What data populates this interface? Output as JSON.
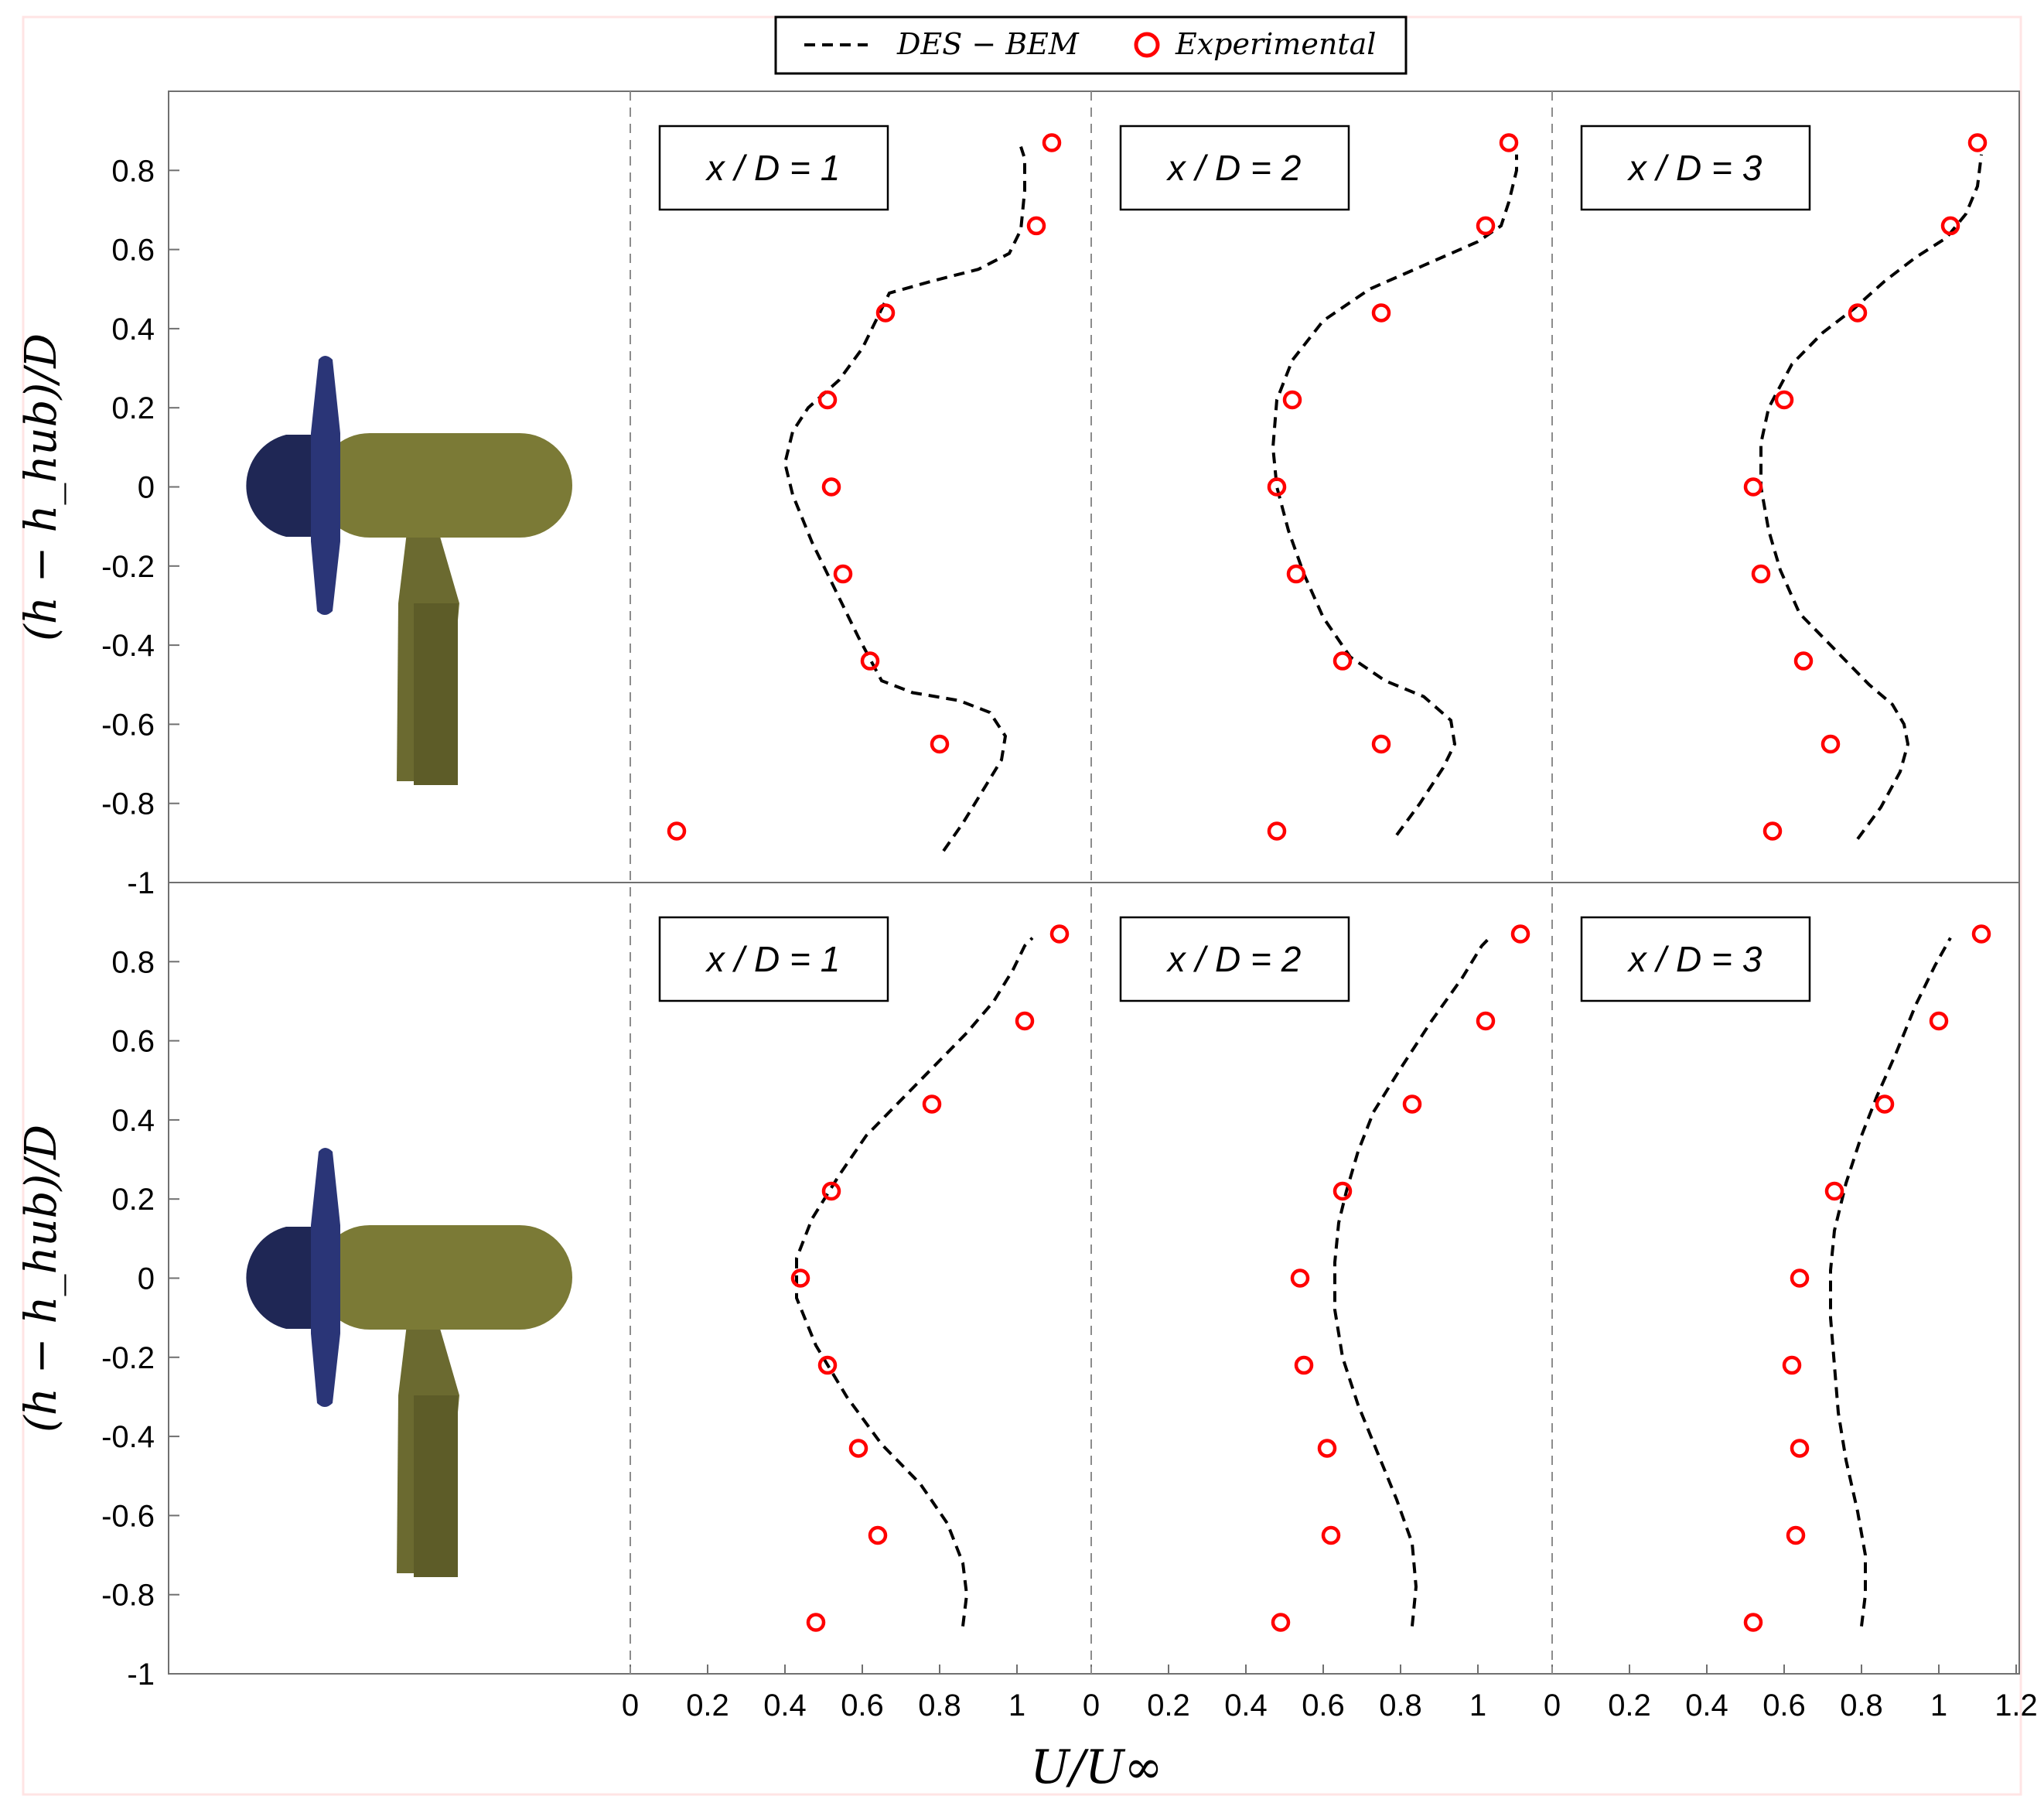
{
  "legend": {
    "placement": "top-center",
    "entries": [
      {
        "label": "DES − BEM",
        "style": "dashed-line",
        "color": "#000000"
      },
      {
        "label": "Experimental",
        "style": "open-circle",
        "color": "#ff0000"
      }
    ]
  },
  "axes": {
    "ylabel": "(h − h_hub)/D",
    "xlabel": "U/U∞",
    "yticks": [
      "0.8",
      "0.6",
      "0.4",
      "0.2",
      "0",
      "-0.2",
      "-0.4",
      "-0.6",
      "-0.8",
      "-1"
    ],
    "xticks": [
      "0",
      "0.2",
      "0.4",
      "0.6",
      "0.8",
      "1"
    ],
    "xticks_last": [
      "0",
      "0.2",
      "0.4",
      "0.6",
      "0.8",
      "1",
      "1.2"
    ]
  },
  "colors": {
    "model": "#000000",
    "experiment": "#ff0000",
    "nacelle_front": "#1f2755",
    "nacelle_body": "#6b6a30",
    "tower": "#5a5a26"
  },
  "illustration_icon": "tidal-turbine-icon",
  "chart_data": [
    {
      "type": "line",
      "row": 0,
      "col": 0,
      "title": "x / D = 1",
      "xlim": [
        0,
        1.2
      ],
      "ylim": [
        -1,
        1
      ],
      "series": [
        {
          "name": "DES − BEM",
          "style": "dashed",
          "points": [
            [
              0.81,
              -0.92
            ],
            [
              0.86,
              -0.85
            ],
            [
              0.91,
              -0.77
            ],
            [
              0.96,
              -0.69
            ],
            [
              0.97,
              -0.63
            ],
            [
              0.93,
              -0.57
            ],
            [
              0.85,
              -0.54
            ],
            [
              0.73,
              -0.52
            ],
            [
              0.65,
              -0.49
            ],
            [
              0.59,
              -0.38
            ],
            [
              0.53,
              -0.26
            ],
            [
              0.47,
              -0.14
            ],
            [
              0.42,
              -0.02
            ],
            [
              0.4,
              0.06
            ],
            [
              0.42,
              0.14
            ],
            [
              0.46,
              0.2
            ],
            [
              0.54,
              0.27
            ],
            [
              0.6,
              0.35
            ],
            [
              0.64,
              0.43
            ],
            [
              0.67,
              0.49
            ],
            [
              0.78,
              0.52
            ],
            [
              0.9,
              0.55
            ],
            [
              0.98,
              0.59
            ],
            [
              1.01,
              0.65
            ],
            [
              1.02,
              0.75
            ],
            [
              1.02,
              0.83
            ],
            [
              1.01,
              0.86
            ]
          ]
        },
        {
          "name": "Experimental",
          "style": "markers",
          "points": [
            [
              1.09,
              0.87
            ],
            [
              1.05,
              0.66
            ],
            [
              0.66,
              0.44
            ],
            [
              0.51,
              0.22
            ],
            [
              0.52,
              0.0
            ],
            [
              0.55,
              -0.22
            ],
            [
              0.62,
              -0.44
            ],
            [
              0.8,
              -0.65
            ],
            [
              0.12,
              -0.87
            ]
          ]
        }
      ]
    },
    {
      "type": "line",
      "row": 0,
      "col": 1,
      "title": "x / D = 2",
      "xlim": [
        0,
        1.2
      ],
      "ylim": [
        -1,
        1
      ],
      "series": [
        {
          "name": "DES − BEM",
          "style": "dashed",
          "points": [
            [
              0.79,
              -0.88
            ],
            [
              0.85,
              -0.8
            ],
            [
              0.91,
              -0.71
            ],
            [
              0.94,
              -0.65
            ],
            [
              0.93,
              -0.59
            ],
            [
              0.86,
              -0.53
            ],
            [
              0.76,
              -0.49
            ],
            [
              0.67,
              -0.43
            ],
            [
              0.6,
              -0.33
            ],
            [
              0.55,
              -0.22
            ],
            [
              0.51,
              -0.11
            ],
            [
              0.48,
              0.0
            ],
            [
              0.47,
              0.1
            ],
            [
              0.48,
              0.22
            ],
            [
              0.52,
              0.32
            ],
            [
              0.6,
              0.42
            ],
            [
              0.72,
              0.5
            ],
            [
              0.86,
              0.56
            ],
            [
              1.0,
              0.62
            ],
            [
              1.06,
              0.66
            ],
            [
              1.08,
              0.72
            ],
            [
              1.1,
              0.8
            ],
            [
              1.1,
              0.84
            ]
          ]
        },
        {
          "name": "Experimental",
          "style": "markers",
          "points": [
            [
              1.08,
              0.87
            ],
            [
              1.02,
              0.66
            ],
            [
              0.75,
              0.44
            ],
            [
              0.52,
              0.22
            ],
            [
              0.48,
              0.0
            ],
            [
              0.53,
              -0.22
            ],
            [
              0.65,
              -0.44
            ],
            [
              0.75,
              -0.65
            ],
            [
              0.48,
              -0.87
            ]
          ]
        }
      ]
    },
    {
      "type": "line",
      "row": 0,
      "col": 2,
      "title": "x / D = 3",
      "xlim": [
        0,
        1.2
      ],
      "ylim": [
        -1,
        1
      ],
      "series": [
        {
          "name": "DES − BEM",
          "style": "dashed",
          "points": [
            [
              0.79,
              -0.89
            ],
            [
              0.85,
              -0.81
            ],
            [
              0.9,
              -0.72
            ],
            [
              0.92,
              -0.65
            ],
            [
              0.91,
              -0.6
            ],
            [
              0.88,
              -0.55
            ],
            [
              0.82,
              -0.5
            ],
            [
              0.73,
              -0.41
            ],
            [
              0.64,
              -0.32
            ],
            [
              0.59,
              -0.21
            ],
            [
              0.56,
              -0.11
            ],
            [
              0.54,
              0.0
            ],
            [
              0.54,
              0.11
            ],
            [
              0.56,
              0.2
            ],
            [
              0.62,
              0.31
            ],
            [
              0.7,
              0.39
            ],
            [
              0.78,
              0.45
            ],
            [
              0.86,
              0.52
            ],
            [
              0.94,
              0.58
            ],
            [
              1.02,
              0.63
            ],
            [
              1.07,
              0.69
            ],
            [
              1.1,
              0.76
            ],
            [
              1.11,
              0.84
            ]
          ]
        },
        {
          "name": "Experimental",
          "style": "markers",
          "points": [
            [
              1.1,
              0.87
            ],
            [
              1.03,
              0.66
            ],
            [
              0.79,
              0.44
            ],
            [
              0.6,
              0.22
            ],
            [
              0.52,
              0.0
            ],
            [
              0.54,
              -0.22
            ],
            [
              0.65,
              -0.44
            ],
            [
              0.72,
              -0.65
            ],
            [
              0.57,
              -0.87
            ]
          ]
        }
      ]
    },
    {
      "type": "line",
      "row": 1,
      "col": 0,
      "title": "x / D = 1",
      "xlim": [
        0,
        1.2
      ],
      "ylim": [
        -1,
        1
      ],
      "series": [
        {
          "name": "DES − BEM",
          "style": "dashed",
          "points": [
            [
              0.86,
              -0.88
            ],
            [
              0.87,
              -0.8
            ],
            [
              0.86,
              -0.72
            ],
            [
              0.82,
              -0.62
            ],
            [
              0.75,
              -0.52
            ],
            [
              0.65,
              -0.42
            ],
            [
              0.56,
              -0.3
            ],
            [
              0.48,
              -0.17
            ],
            [
              0.43,
              -0.05
            ],
            [
              0.43,
              0.05
            ],
            [
              0.47,
              0.15
            ],
            [
              0.54,
              0.26
            ],
            [
              0.61,
              0.36
            ],
            [
              0.7,
              0.45
            ],
            [
              0.78,
              0.53
            ],
            [
              0.87,
              0.62
            ],
            [
              0.94,
              0.7
            ],
            [
              0.99,
              0.78
            ],
            [
              1.02,
              0.84
            ],
            [
              1.04,
              0.86
            ]
          ]
        },
        {
          "name": "Experimental",
          "style": "markers",
          "points": [
            [
              1.11,
              0.87
            ],
            [
              1.02,
              0.65
            ],
            [
              0.78,
              0.44
            ],
            [
              0.52,
              0.22
            ],
            [
              0.44,
              0.0
            ],
            [
              0.51,
              -0.22
            ],
            [
              0.59,
              -0.43
            ],
            [
              0.64,
              -0.65
            ],
            [
              0.48,
              -0.87
            ]
          ]
        }
      ]
    },
    {
      "type": "line",
      "row": 1,
      "col": 1,
      "title": "x / D = 2",
      "xlim": [
        0,
        1.2
      ],
      "ylim": [
        -1,
        1
      ],
      "series": [
        {
          "name": "DES − BEM",
          "style": "dashed",
          "points": [
            [
              0.83,
              -0.88
            ],
            [
              0.84,
              -0.78
            ],
            [
              0.83,
              -0.67
            ],
            [
              0.79,
              -0.56
            ],
            [
              0.74,
              -0.44
            ],
            [
              0.69,
              -0.32
            ],
            [
              0.65,
              -0.2
            ],
            [
              0.63,
              -0.08
            ],
            [
              0.63,
              0.04
            ],
            [
              0.64,
              0.14
            ],
            [
              0.66,
              0.22
            ],
            [
              0.69,
              0.32
            ],
            [
              0.73,
              0.42
            ],
            [
              0.8,
              0.53
            ],
            [
              0.88,
              0.65
            ],
            [
              0.96,
              0.76
            ],
            [
              1.01,
              0.84
            ],
            [
              1.03,
              0.86
            ]
          ]
        },
        {
          "name": "Experimental",
          "style": "markers",
          "points": [
            [
              1.11,
              0.87
            ],
            [
              1.02,
              0.65
            ],
            [
              0.83,
              0.44
            ],
            [
              0.65,
              0.22
            ],
            [
              0.54,
              0.0
            ],
            [
              0.55,
              -0.22
            ],
            [
              0.61,
              -0.43
            ],
            [
              0.62,
              -0.65
            ],
            [
              0.49,
              -0.87
            ]
          ]
        }
      ]
    },
    {
      "type": "line",
      "row": 1,
      "col": 2,
      "title": "x / D = 3",
      "xlim": [
        0,
        1.2
      ],
      "ylim": [
        -1,
        1
      ],
      "series": [
        {
          "name": "DES − BEM",
          "style": "dashed",
          "points": [
            [
              0.8,
              -0.88
            ],
            [
              0.81,
              -0.8
            ],
            [
              0.81,
              -0.7
            ],
            [
              0.79,
              -0.59
            ],
            [
              0.76,
              -0.46
            ],
            [
              0.74,
              -0.34
            ],
            [
              0.73,
              -0.22
            ],
            [
              0.72,
              -0.1
            ],
            [
              0.72,
              0.02
            ],
            [
              0.73,
              0.12
            ],
            [
              0.76,
              0.24
            ],
            [
              0.8,
              0.36
            ],
            [
              0.84,
              0.46
            ],
            [
              0.89,
              0.57
            ],
            [
              0.94,
              0.69
            ],
            [
              0.99,
              0.79
            ],
            [
              1.03,
              0.86
            ]
          ]
        },
        {
          "name": "Experimental",
          "style": "markers",
          "points": [
            [
              1.11,
              0.87
            ],
            [
              1.0,
              0.65
            ],
            [
              0.86,
              0.44
            ],
            [
              0.73,
              0.22
            ],
            [
              0.64,
              0.0
            ],
            [
              0.62,
              -0.22
            ],
            [
              0.64,
              -0.43
            ],
            [
              0.63,
              -0.65
            ],
            [
              0.52,
              -0.87
            ]
          ]
        }
      ]
    }
  ]
}
